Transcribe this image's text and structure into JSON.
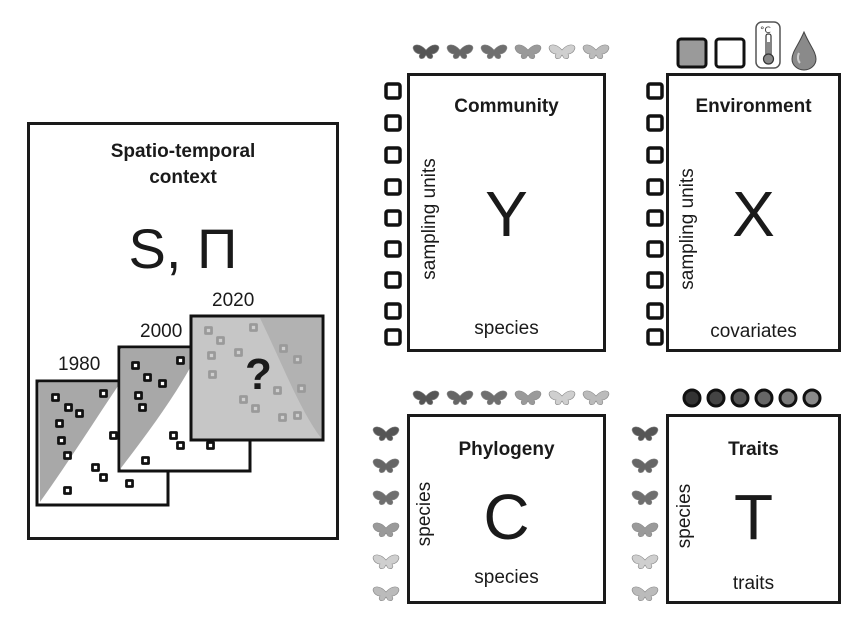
{
  "context": {
    "title_line1": "Spatio-temporal",
    "title_line2": "context",
    "symbol": "S, Π",
    "years": [
      "1980",
      "2000",
      "2020"
    ],
    "unknown_mark": "?"
  },
  "community": {
    "title": "Community",
    "symbol": "Y",
    "row_label": "sampling units",
    "col_label": "species"
  },
  "environment": {
    "title": "Environment",
    "symbol": "X",
    "row_label": "sampling units",
    "col_label": "covariates",
    "icons": [
      "filled-square-icon",
      "empty-square-icon",
      "thermometer-icon",
      "water-drop-icon"
    ]
  },
  "phylogeny": {
    "title": "Phylogeny",
    "symbol": "C",
    "row_label": "species",
    "col_label": "species"
  },
  "traits": {
    "title": "Traits",
    "symbol": "T",
    "row_label": "species",
    "col_label": "traits"
  },
  "colors": {
    "moths": [
      "#555555",
      "#666666",
      "#6f6f6f",
      "#9a9a9a",
      "#cfcfcf",
      "#bbbbbb"
    ],
    "trait_dots": [
      "#333333",
      "#444444",
      "#555555",
      "#666666",
      "#7a7a7a",
      "#8a8a8a"
    ]
  }
}
